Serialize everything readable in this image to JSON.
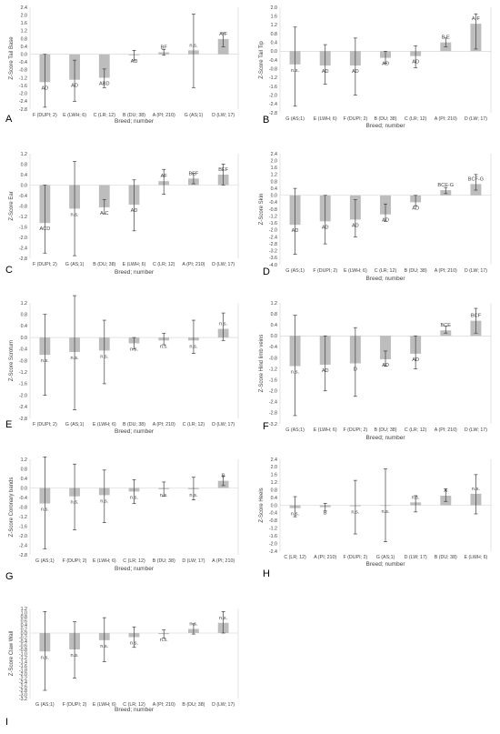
{
  "figure": {
    "x_axis_label": "Breed; number"
  },
  "chart_data": [
    {
      "type": "bar",
      "panel": "A",
      "ylabel": "Z-Score Tail Base",
      "yticks": [
        "2.4",
        "2.0",
        "1.6",
        "1.2",
        "0.8",
        "0.4",
        "0.0",
        "-0.4",
        "-0.8",
        "-1.2",
        "-1.6",
        "-2.0",
        "-2.4",
        "-2.8"
      ],
      "ylim": [
        -2.8,
        2.4
      ],
      "categories": [
        "F (DUPI; 2)",
        "E (LWH; 6)",
        "C (LR; 12)",
        "B (DU; 38)",
        "A (PI; 210)",
        "G (AS;1)",
        "D (LW; 17)"
      ],
      "values": [
        -1.42,
        -1.3,
        -1.2,
        -0.05,
        0.1,
        0.2,
        0.78
      ],
      "err_low": [
        -2.7,
        -2.4,
        -1.7,
        -0.3,
        -0.05,
        -1.7,
        0.38
      ],
      "err_high": [
        0.0,
        -0.3,
        -0.75,
        0.2,
        0.25,
        2.05,
        1.1
      ],
      "annotations": [
        "AD",
        "AD",
        "ABD",
        "AD",
        "BF",
        "n.s.",
        "A-F"
      ]
    },
    {
      "type": "bar",
      "panel": "B",
      "ylabel": "Z-Score Tail Tip",
      "yticks": [
        "2.0",
        "1.6",
        "1.2",
        "0.8",
        "0.4",
        "0.0",
        "-0.4",
        "-0.8",
        "-1.2",
        "-1.6",
        "-2.0",
        "-2.4",
        "-2.8"
      ],
      "ylim": [
        -2.8,
        2.0
      ],
      "categories": [
        "G (AS;1)",
        "E (LWH; 6)",
        "F (DUPI; 2)",
        "B (DU; 38)",
        "C (LR; 12)",
        "A (PI; 210)",
        "D (LW; 17)"
      ],
      "values": [
        -0.6,
        -0.65,
        -0.65,
        -0.3,
        -0.22,
        0.4,
        1.25
      ],
      "err_low": [
        -2.5,
        -1.5,
        -2.0,
        -0.55,
        -0.75,
        0.2,
        0.1
      ],
      "err_high": [
        1.1,
        0.3,
        0.6,
        0.0,
        0.25,
        0.6,
        1.7
      ],
      "annotations": [
        "n.s.",
        "AD",
        "AD",
        "AD",
        "AD",
        "B,E",
        "A-F"
      ]
    },
    {
      "type": "bar",
      "panel": "C",
      "ylabel": "Z-Score Ear",
      "yticks": [
        "1.2",
        "0.8",
        "0.4",
        "0.0",
        "-0.4",
        "-0.8",
        "-1.2",
        "-1.6",
        "-2.0",
        "-2.4",
        "-2.8"
      ],
      "ylim": [
        -2.8,
        1.2
      ],
      "categories": [
        "F (DUPI; 2)",
        "G (AS;1)",
        "B (DU; 38)",
        "E (LWH; 6)",
        "C (LR; 12)",
        "A (PI; 210)",
        "D (LW; 17)"
      ],
      "values": [
        -1.45,
        -0.9,
        -0.85,
        -0.75,
        0.15,
        0.25,
        0.4
      ],
      "err_low": [
        -2.6,
        -2.7,
        -1.1,
        -1.75,
        -0.35,
        0.05,
        0.0
      ],
      "err_high": [
        0.0,
        0.9,
        -0.55,
        0.2,
        0.6,
        0.45,
        0.8
      ],
      "annotations": [
        "ACD",
        "n.s.",
        "A-C",
        "AD",
        "AF",
        "BEF",
        "BEF"
      ]
    },
    {
      "type": "bar",
      "panel": "D",
      "ylabel": "Z-Score Skin",
      "yticks": [
        "2.4",
        "2.0",
        "1.6",
        "1.2",
        "0.8",
        "0.4",
        "0.0",
        "-0.4",
        "-0.8",
        "-1.2",
        "-1.6",
        "-2.0",
        "-2.4",
        "-2.8",
        "-3.2",
        "-3.6",
        "-4.0"
      ],
      "ylim": [
        -4.0,
        2.4
      ],
      "categories": [
        "G (AS;1)",
        "F (DUPI; 2)",
        "E (LWH; 6)",
        "C (LR; 12)",
        "B (DU; 38)",
        "A (PI; 210)",
        "D (LW; 17)"
      ],
      "values": [
        -1.7,
        -1.5,
        -1.4,
        -1.1,
        -0.4,
        0.3,
        0.65
      ],
      "err_low": [
        -3.4,
        -2.8,
        -2.4,
        -1.5,
        -0.6,
        0.1,
        0.3
      ],
      "err_high": [
        0.4,
        0.0,
        -0.25,
        -0.5,
        0.0,
        0.45,
        1.2
      ],
      "annotations": [
        "AD",
        "AD",
        "AD",
        "AD",
        "AD",
        "BCE-G",
        "BCF-G"
      ]
    },
    {
      "type": "bar",
      "panel": "E",
      "ylabel": "Z-Score Scrotum",
      "yticks": [
        "1.2",
        "0.8",
        "0.4",
        "0.0",
        "-0.4",
        "-0.8",
        "-1.2",
        "-1.6",
        "-2.0",
        "-2.4",
        "-2.8"
      ],
      "ylim": [
        -2.8,
        1.2
      ],
      "categories": [
        "F (DUPI; 2)",
        "G (AS;1)",
        "E (LWH; 6)",
        "B (DU; 38)",
        "A (PI; 210)",
        "C (LR; 12)",
        "D (LW; 17)"
      ],
      "values": [
        -0.6,
        -0.5,
        -0.45,
        -0.2,
        -0.1,
        -0.1,
        0.3
      ],
      "err_low": [
        -2.0,
        -2.5,
        -1.6,
        -0.4,
        -0.25,
        -0.55,
        -0.1
      ],
      "err_high": [
        0.8,
        1.45,
        0.6,
        0.0,
        0.15,
        0.6,
        0.85
      ],
      "annotations": [
        "n.s.",
        "n.s.",
        "n.s.",
        "n.s.",
        "n.s.",
        "n.s.",
        "n.s."
      ]
    },
    {
      "type": "bar",
      "panel": "F",
      "ylabel": "Z-Score Hind limb veins",
      "yticks": [
        "1.2",
        "0.8",
        "0.4",
        "0.0",
        "-0.4",
        "-0.8",
        "-1.2",
        "-1.6",
        "-2.0",
        "-2.4",
        "-2.8",
        "-3.2"
      ],
      "ylim": [
        -3.2,
        1.2
      ],
      "categories": [
        "G (AS;1)",
        "E (LWH; 6)",
        "F (DUPI; 2)",
        "B (DU; 38)",
        "C (LR; 12)",
        "A (PI; 210)",
        "D (LW; 17)"
      ],
      "values": [
        -1.1,
        -1.05,
        -1.0,
        -0.85,
        -0.65,
        0.2,
        0.55
      ],
      "err_low": [
        -2.9,
        -2.0,
        -2.2,
        -1.1,
        -1.2,
        0.1,
        0.1
      ],
      "err_high": [
        0.75,
        0.0,
        0.3,
        -0.55,
        0.0,
        0.35,
        1.0
      ],
      "annotations": [
        "n.s.",
        "AD",
        "D",
        "AD",
        "AD",
        "BCE",
        "BCF"
      ]
    },
    {
      "type": "bar",
      "panel": "G",
      "ylabel": "Z-Score Coronary bands",
      "yticks": [
        "1.2",
        "0.8",
        "0.4",
        "0.0",
        "-0.4",
        "-0.8",
        "-1.2",
        "-1.6",
        "-2.0",
        "-2.4",
        "-2.8"
      ],
      "ylim": [
        -2.8,
        1.2
      ],
      "categories": [
        "G (AS;1)",
        "F (DUPI; 2)",
        "E (LWH; 6)",
        "C (LR; 12)",
        "B (DU; 38)",
        "D (LW; 17)",
        "A (PI; 210)"
      ],
      "values": [
        -0.65,
        -0.35,
        -0.3,
        -0.15,
        -0.05,
        -0.05,
        0.3
      ],
      "err_low": [
        -2.55,
        -1.75,
        -1.45,
        -0.65,
        -0.35,
        -0.5,
        0.1
      ],
      "err_high": [
        1.3,
        1.0,
        0.75,
        0.35,
        0.25,
        0.45,
        0.5
      ],
      "annotations": [
        "n.s.",
        "n.s.",
        "n.s.",
        "n.s.",
        "n.s.",
        "n.s.",
        "B"
      ]
    },
    {
      "type": "bar",
      "panel": "H",
      "ylabel": "Z-Score Heels",
      "yticks": [
        "2.4",
        "2.0",
        "1.6",
        "1.2",
        "0.8",
        "0.4",
        "0.0",
        "-0.4",
        "-0.8",
        "-1.2",
        "-1.6",
        "-2.0",
        "-2.4"
      ],
      "ylim": [
        -2.4,
        2.4
      ],
      "categories": [
        "C (LR; 12)",
        "A (PI; 210)",
        "F (DUPI; 2)",
        "G (AS;1)",
        "D (LW; 17)",
        "B (DU; 38)",
        "E (LWH; 6)"
      ],
      "values": [
        -0.15,
        -0.1,
        -0.05,
        -0.02,
        0.15,
        0.5,
        0.6
      ],
      "err_low": [
        -0.6,
        -0.3,
        -1.5,
        -1.9,
        -0.35,
        0.2,
        -0.45
      ],
      "err_high": [
        0.45,
        0.1,
        1.3,
        1.9,
        0.5,
        0.85,
        1.6
      ],
      "annotations": [
        "n.s.",
        "B",
        "n.s.",
        "n.s.",
        "n.s.",
        "A",
        "n.s."
      ]
    },
    {
      "type": "bar",
      "panel": "I",
      "ylabel": "Z-Score Claw Wall",
      "yticks": [
        "1.2",
        "1.0",
        "0.8",
        "0.6",
        "0.4",
        "0.2",
        "0.0",
        "-0.2",
        "-0.4",
        "-0.6",
        "-0.8",
        "-1.0",
        "-1.2",
        "-1.4",
        "-1.6",
        "-1.8",
        "-2.0",
        "-2.2",
        "-2.4",
        "-2.6",
        "-2.8",
        "-3.0",
        "-3.2"
      ],
      "ylim": [
        -3.2,
        1.2
      ],
      "categories": [
        "G (AS;1)",
        "F (DUPI; 2)",
        "E (LWH; 6)",
        "C (LR; 12)",
        "A (PI; 210)",
        "B (DU; 38)",
        "D (LW; 17)"
      ],
      "values": [
        -0.9,
        -0.8,
        -0.35,
        -0.2,
        -0.05,
        0.2,
        0.5
      ],
      "err_low": [
        -2.8,
        -2.2,
        -1.4,
        -0.7,
        -0.25,
        -0.05,
        0.0
      ],
      "err_high": [
        1.05,
        0.55,
        0.75,
        0.3,
        0.15,
        0.45,
        1.05
      ],
      "annotations": [
        "n.s.",
        "n.s.",
        "n.s.",
        "n.s.",
        "n.s.",
        "n.s.",
        "n.s."
      ]
    }
  ]
}
